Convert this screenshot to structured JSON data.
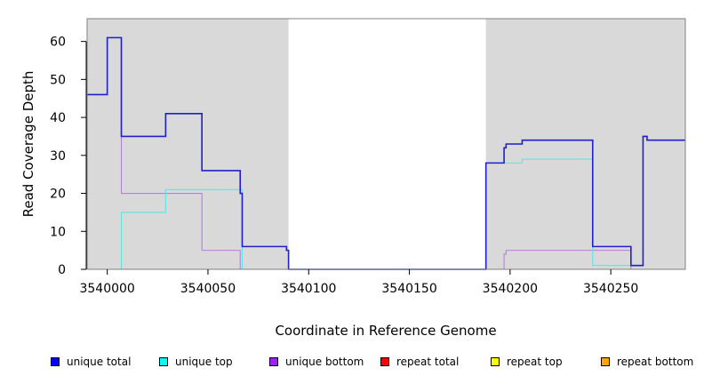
{
  "chart_data": {
    "type": "line",
    "xlabel": "Coordinate in Reference Genome",
    "ylabel": "Read Coverage Depth",
    "xlim": [
      3539990,
      3540287
    ],
    "ylim": [
      0,
      66
    ],
    "x_ticks": [
      3540000,
      3540050,
      3540100,
      3540150,
      3540200,
      3540250
    ],
    "x_tick_labels": [
      "3540000",
      "3540050",
      "3540100",
      "3540150",
      "3540200",
      "3540250"
    ],
    "y_ticks": [
      0,
      10,
      20,
      30,
      40,
      50,
      60
    ],
    "y_tick_labels": [
      "0",
      "10",
      "20",
      "30",
      "40",
      "50",
      "60"
    ],
    "shaded_regions": [
      {
        "x_start": 3539990,
        "x_end": 3540090,
        "color": "#d9d9d9"
      },
      {
        "x_start": 3540188,
        "x_end": 3540287,
        "color": "#d9d9d9"
      }
    ],
    "series": [
      {
        "name": "unique total",
        "color": "#1f1fcf",
        "steps": [
          [
            3539990,
            46
          ],
          [
            3540000,
            61
          ],
          [
            3540007,
            35
          ],
          [
            3540029,
            41
          ],
          [
            3540047,
            26
          ],
          [
            3540066,
            20
          ],
          [
            3540067,
            6
          ],
          [
            3540089,
            5
          ],
          [
            3540090,
            0
          ],
          [
            3540188,
            28
          ],
          [
            3540197,
            32
          ],
          [
            3540198,
            33
          ],
          [
            3540206,
            34
          ],
          [
            3540241,
            6
          ],
          [
            3540260,
            1
          ],
          [
            3540266,
            35
          ],
          [
            3540268,
            34
          ],
          [
            3540287,
            34
          ]
        ]
      },
      {
        "name": "unique top",
        "color": "#5fe3e3",
        "steps": [
          [
            3539990,
            0
          ],
          [
            3540007,
            15
          ],
          [
            3540029,
            21
          ],
          [
            3540067,
            0
          ],
          [
            3540188,
            28
          ],
          [
            3540206,
            29
          ],
          [
            3540241,
            1
          ],
          [
            3540260,
            1
          ],
          [
            3540266,
            35
          ],
          [
            3540268,
            34
          ],
          [
            3540287,
            34
          ]
        ]
      },
      {
        "name": "unique bottom",
        "color": "#b57ee0",
        "steps": [
          [
            3539990,
            46
          ],
          [
            3540000,
            61
          ],
          [
            3540007,
            20
          ],
          [
            3540047,
            5
          ],
          [
            3540066,
            0
          ],
          [
            3540197,
            4
          ],
          [
            3540198,
            5
          ],
          [
            3540260,
            0
          ],
          [
            3540287,
            0
          ]
        ]
      },
      {
        "name": "repeat total",
        "color": "#ff0000",
        "steps": [
          [
            3539990,
            0
          ],
          [
            3540287,
            0
          ]
        ]
      },
      {
        "name": "repeat top",
        "color": "#ffff00",
        "steps": [
          [
            3539990,
            0
          ],
          [
            3540287,
            0
          ]
        ]
      },
      {
        "name": "repeat bottom",
        "color": "#f5a300",
        "steps": [
          [
            3539990,
            0
          ],
          [
            3540287,
            0
          ]
        ]
      }
    ],
    "legend_position": "bottom",
    "legend": [
      {
        "label": "unique total",
        "color": "#0000ff"
      },
      {
        "label": "unique top",
        "color": "#00ffff"
      },
      {
        "label": "unique bottom",
        "color": "#a020f0"
      },
      {
        "label": "repeat total",
        "color": "#ff0000"
      },
      {
        "label": "repeat top",
        "color": "#ffff00"
      },
      {
        "label": "repeat bottom",
        "color": "#ffa500"
      }
    ]
  }
}
